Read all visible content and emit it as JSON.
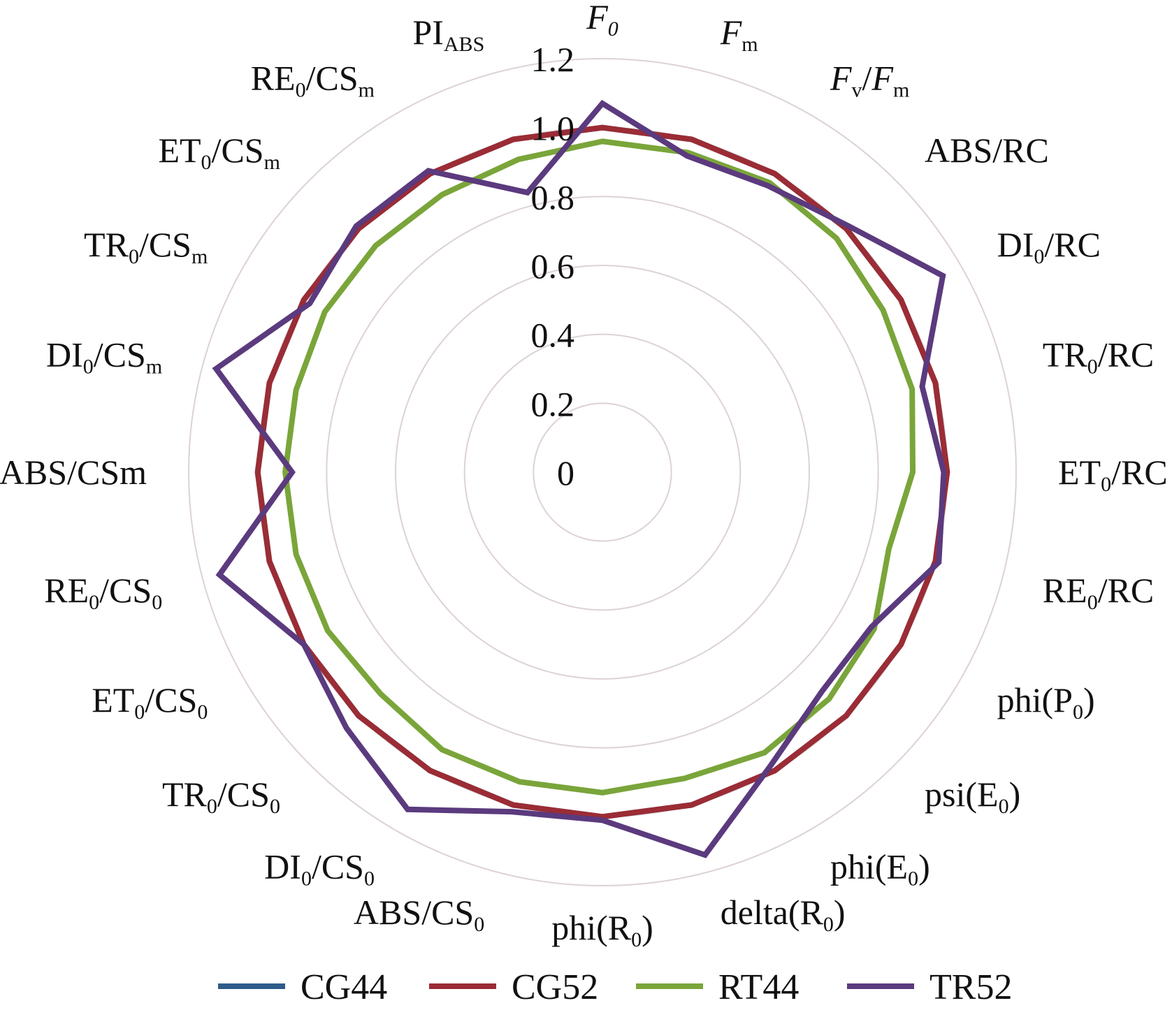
{
  "chart_data": {
    "type": "radar",
    "title": "",
    "categories": [
      {
        "parts": [
          {
            "t": "F",
            "i": true
          },
          {
            "t": "0",
            "s": true,
            "i": true
          }
        ]
      },
      {
        "parts": [
          {
            "t": "F",
            "i": true
          },
          {
            "t": "m",
            "s": true
          }
        ]
      },
      {
        "parts": [
          {
            "t": "F",
            "i": true
          },
          {
            "t": "v",
            "s": true
          },
          {
            "t": "/"
          },
          {
            "t": "F",
            "i": true
          },
          {
            "t": "m",
            "s": true
          }
        ]
      },
      {
        "parts": [
          {
            "t": "ABS/RC"
          }
        ]
      },
      {
        "parts": [
          {
            "t": "DI"
          },
          {
            "t": "0",
            "s": true
          },
          {
            "t": "/RC"
          }
        ]
      },
      {
        "parts": [
          {
            "t": "TR"
          },
          {
            "t": "0",
            "s": true
          },
          {
            "t": "/RC"
          }
        ]
      },
      {
        "parts": [
          {
            "t": "ET"
          },
          {
            "t": "0",
            "s": true
          },
          {
            "t": "/RC"
          }
        ]
      },
      {
        "parts": [
          {
            "t": "RE"
          },
          {
            "t": "0",
            "s": true
          },
          {
            "t": "/RC"
          }
        ]
      },
      {
        "parts": [
          {
            "t": "phi(P"
          },
          {
            "t": "0",
            "s": true
          },
          {
            "t": ")"
          }
        ]
      },
      {
        "parts": [
          {
            "t": "psi(E"
          },
          {
            "t": "0",
            "s": true
          },
          {
            "t": ")"
          }
        ]
      },
      {
        "parts": [
          {
            "t": "phi(E"
          },
          {
            "t": "0",
            "s": true
          },
          {
            "t": ")"
          }
        ]
      },
      {
        "parts": [
          {
            "t": "delta(R"
          },
          {
            "t": "0",
            "s": true
          },
          {
            "t": ")"
          }
        ]
      },
      {
        "parts": [
          {
            "t": "phi(R"
          },
          {
            "t": "0",
            "s": true
          },
          {
            "t": ")"
          }
        ]
      },
      {
        "parts": [
          {
            "t": "ABS/CS"
          },
          {
            "t": "0",
            "s": true
          }
        ]
      },
      {
        "parts": [
          {
            "t": "DI"
          },
          {
            "t": "0",
            "s": true
          },
          {
            "t": "/CS"
          },
          {
            "t": "0",
            "s": true
          }
        ]
      },
      {
        "parts": [
          {
            "t": "TR"
          },
          {
            "t": "0",
            "s": true
          },
          {
            "t": "/CS"
          },
          {
            "t": "0",
            "s": true
          }
        ]
      },
      {
        "parts": [
          {
            "t": "ET"
          },
          {
            "t": "0",
            "s": true
          },
          {
            "t": "/CS"
          },
          {
            "t": "0",
            "s": true
          }
        ]
      },
      {
        "parts": [
          {
            "t": "RE"
          },
          {
            "t": "0",
            "s": true
          },
          {
            "t": "/CS"
          },
          {
            "t": "0",
            "s": true
          }
        ]
      },
      {
        "parts": [
          {
            "t": "ABS/CSm"
          }
        ]
      },
      {
        "parts": [
          {
            "t": "DI"
          },
          {
            "t": "0",
            "s": true
          },
          {
            "t": "/CS"
          },
          {
            "t": "m",
            "s": true
          }
        ]
      },
      {
        "parts": [
          {
            "t": "TR"
          },
          {
            "t": "0",
            "s": true
          },
          {
            "t": "/CS"
          },
          {
            "t": "m",
            "s": true
          }
        ]
      },
      {
        "parts": [
          {
            "t": "ET"
          },
          {
            "t": "0",
            "s": true
          },
          {
            "t": "/CS"
          },
          {
            "t": "m",
            "s": true
          }
        ]
      },
      {
        "parts": [
          {
            "t": "RE"
          },
          {
            "t": "0",
            "s": true
          },
          {
            "t": "/CS"
          },
          {
            "t": "m",
            "s": true
          }
        ]
      },
      {
        "parts": [
          {
            "t": "PI"
          },
          {
            "t": "ABS",
            "s": true
          }
        ]
      }
    ],
    "rlim": [
      0,
      1.2
    ],
    "ticks": [
      "0",
      "0.2",
      "0.4",
      "0.6",
      "0.8",
      "1.0",
      "1.2"
    ],
    "grid": true,
    "legend_position": "bottom",
    "series": [
      {
        "name": "CG44",
        "color": "#2e5c8a",
        "values": [
          1,
          1,
          1,
          1,
          1,
          1,
          1,
          1,
          1,
          1,
          1,
          1,
          1,
          1,
          1,
          1,
          1,
          1,
          1,
          1,
          1,
          1,
          1,
          1
        ]
      },
      {
        "name": "CG52",
        "color": "#9b2c35",
        "values": [
          1.0,
          1.0,
          1.0,
          1.0,
          1.0,
          1.0,
          1.0,
          1.0,
          1.0,
          1.0,
          1.0,
          1.0,
          1.0,
          1.0,
          1.0,
          1.0,
          1.0,
          1.0,
          1.0,
          1.0,
          1.0,
          1.0,
          1.0,
          1.0
        ]
      },
      {
        "name": "RT44",
        "color": "#7aa53a",
        "values": [
          0.96,
          0.96,
          0.97,
          0.96,
          0.94,
          0.93,
          0.9,
          0.86,
          0.91,
          0.93,
          0.94,
          0.92,
          0.93,
          0.93,
          0.93,
          0.91,
          0.92,
          0.92,
          0.92,
          0.92,
          0.93,
          0.93,
          0.93,
          0.94
        ]
      },
      {
        "name": "TR52",
        "color": "#5b3a7e",
        "values": [
          1.07,
          0.95,
          0.96,
          1.01,
          1.14,
          0.96,
          0.99,
          1.01,
          0.9,
          0.9,
          0.98,
          1.15,
          1.01,
          1.02,
          1.13,
          1.05,
          1.0,
          1.15,
          0.9,
          1.16,
          0.98,
          1.01,
          1.01,
          0.84
        ]
      }
    ]
  }
}
